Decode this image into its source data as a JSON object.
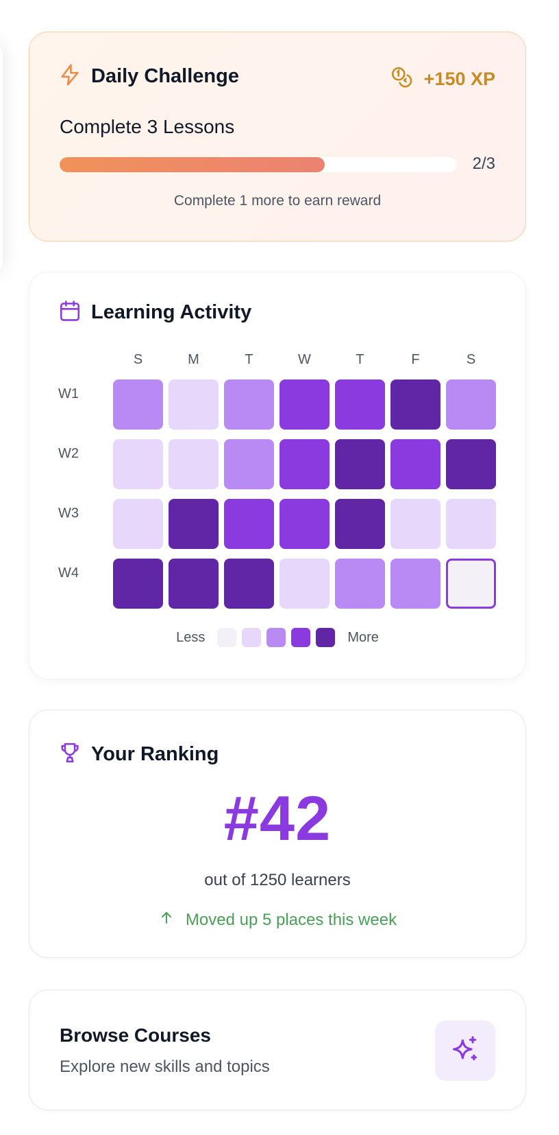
{
  "challenge": {
    "title": "Daily Challenge",
    "title_icon": "lightning-icon",
    "xp_icon": "coins-icon",
    "xp": "+150 XP",
    "task": "Complete 3 Lessons",
    "progress": 0.667,
    "count": "2/3",
    "hint": "Complete 1 more to earn reward"
  },
  "activity": {
    "title": "Learning Activity",
    "title_icon": "calendar-icon",
    "days": [
      "S",
      "M",
      "T",
      "W",
      "T",
      "F",
      "S"
    ],
    "weeks": [
      {
        "label": "W1",
        "levels": [
          2,
          1,
          2,
          3,
          3,
          4,
          2
        ]
      },
      {
        "label": "W2",
        "levels": [
          1,
          1,
          2,
          3,
          4,
          3,
          4
        ]
      },
      {
        "label": "W3",
        "levels": [
          1,
          4,
          3,
          3,
          4,
          1,
          1
        ]
      },
      {
        "label": "W4",
        "levels": [
          4,
          4,
          4,
          1,
          2,
          2,
          0
        ]
      }
    ],
    "today": {
      "week": 3,
      "day": 6
    },
    "level_colors": [
      "#f4f0f7",
      "#e7d8fb",
      "#b98af4",
      "#8b3adf",
      "#6126a5"
    ],
    "legend_less": "Less",
    "legend_more": "More"
  },
  "ranking": {
    "title": "Your Ranking",
    "title_icon": "trophy-icon",
    "rank": "#42",
    "subtitle": "out of 1250 learners",
    "change_icon": "arrow-up-icon",
    "change": "Moved up 5 places this week"
  },
  "browse": {
    "title": "Browse Courses",
    "subtitle": "Explore new skills and topics",
    "icon": "sparkles-icon"
  },
  "colors": {
    "accent": "#8b3adf",
    "xp": "#c98a24",
    "success": "#4a9f58",
    "progress_start": "#f0925a",
    "progress_end": "#ec8272"
  }
}
